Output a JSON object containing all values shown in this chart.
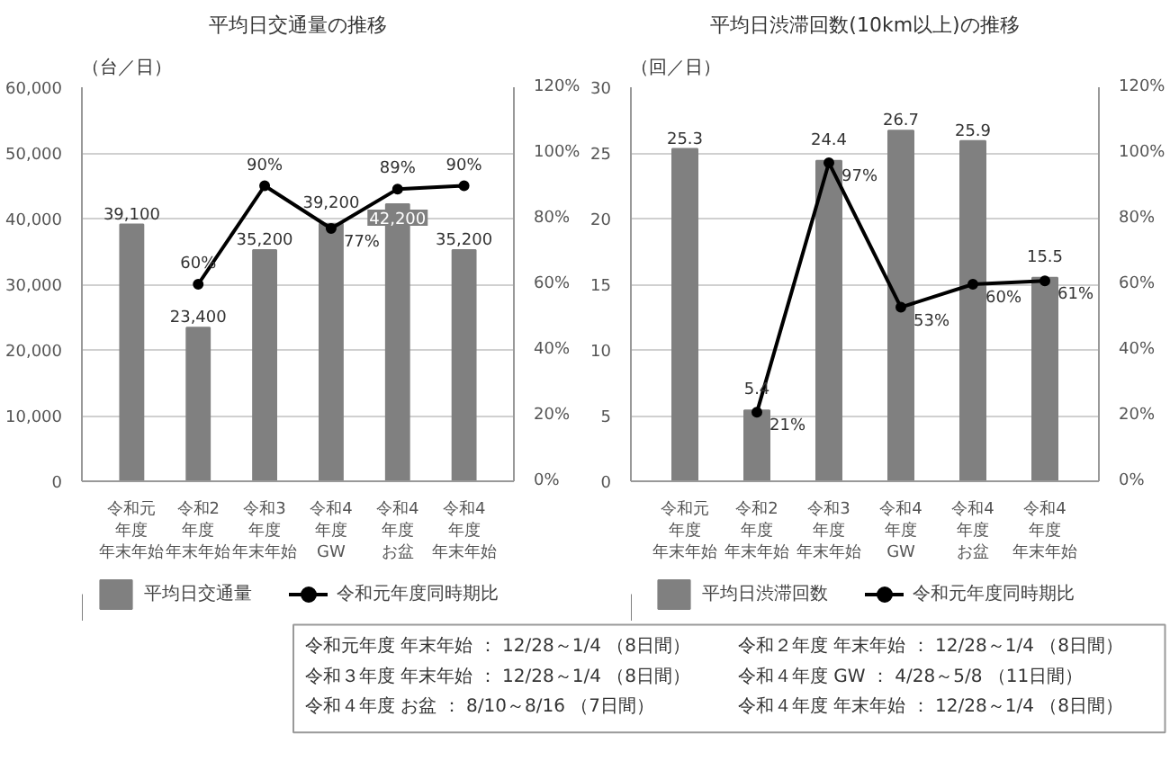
{
  "chart_data": [
    {
      "type": "bar",
      "title": "平均日交通量の推移",
      "ylabel": "（台／日）",
      "categories": [
        "令和元年度年末年始",
        "令和2年度年末年始",
        "令和3年度年末年始",
        "令和4年度GW",
        "令和4年度お盆",
        "令和4年度年末年始"
      ],
      "series": [
        {
          "name": "平均日交通量",
          "type": "bar",
          "color": "#808080",
          "values": [
            39100,
            23400,
            35200,
            39200,
            42200,
            35200
          ],
          "value_labels": [
            "39,100",
            "23,400",
            "35,200",
            "39,200",
            "42,200",
            "35,200"
          ]
        },
        {
          "name": "令和元年度同時期比",
          "type": "line",
          "axis": "y2",
          "color": "#000000",
          "marker": "circle",
          "values": [
            null,
            60,
            90,
            77,
            89,
            90
          ],
          "value_labels": [
            null,
            "60%",
            "90%",
            "77%",
            "89%",
            "90%"
          ]
        }
      ],
      "ylim": [
        0,
        60000
      ],
      "yticks": [
        0,
        {
          "value": 10000,
          "label": "10,000"
        },
        {
          "value": 20000,
          "label": "20,000"
        },
        {
          "value": 30000,
          "label": "30,000"
        },
        {
          "value": 40000,
          "label": "40,000"
        },
        {
          "value": 50000,
          "label": "50,000"
        },
        {
          "value": 60000,
          "label": "60,000"
        }
      ],
      "y2lim": [
        0,
        120
      ],
      "y2ticks": [
        {
          "value": 0,
          "label": "0%"
        },
        {
          "value": 20,
          "label": "20%"
        },
        {
          "value": 40,
          "label": "40%"
        },
        {
          "value": 60,
          "label": "60%"
        },
        {
          "value": 80,
          "label": "80%"
        },
        {
          "value": 100,
          "label": "100%"
        },
        {
          "value": 120,
          "label": "120%"
        }
      ],
      "grid": "y",
      "legend": "bottom"
    },
    {
      "type": "bar",
      "title": "平均日渋滞回数(10km以上)の推移",
      "ylabel": "（回／日）",
      "categories": [
        "令和元年度年末年始",
        "令和2年度年末年始",
        "令和3年度年末年始",
        "令和4年度GW",
        "令和4年度お盆",
        "令和4年度年末年始"
      ],
      "series": [
        {
          "name": "平均日渋滞回数",
          "type": "bar",
          "color": "#808080",
          "values": [
            25.3,
            5.4,
            24.4,
            26.7,
            25.9,
            15.5
          ],
          "value_labels": [
            "25.3",
            "5.4",
            "24.4",
            "26.7",
            "25.9",
            "15.5"
          ]
        },
        {
          "name": "令和元年度同時期比",
          "type": "line",
          "axis": "y2",
          "color": "#000000",
          "marker": "circle",
          "values": [
            null,
            21,
            97,
            53,
            60,
            61
          ],
          "value_labels": [
            null,
            "21%",
            "97%",
            "53%",
            "60%",
            "61%"
          ]
        }
      ],
      "ylim": [
        0,
        30
      ],
      "yticks": [
        0,
        5,
        10,
        15,
        20,
        25,
        30
      ],
      "y2lim": [
        0,
        120
      ],
      "y2ticks": [
        {
          "value": 0,
          "label": "0%"
        },
        {
          "value": 20,
          "label": "20%"
        },
        {
          "value": 40,
          "label": "40%"
        },
        {
          "value": 60,
          "label": "60%"
        },
        {
          "value": 80,
          "label": "80%"
        },
        {
          "value": 100,
          "label": "100%"
        },
        {
          "value": 120,
          "label": "120%"
        }
      ],
      "grid": "y",
      "legend": "bottom"
    },
    {
      "type": "other",
      "annotations": [
        "令和元年度 年末年始 ： 12/28～1/4 （8日間）",
        "令和３年度 年末年始 ： 12/28～1/4 （8日間）",
        "令和４年度 お盆 ： 8/10～8/16 （7日間）",
        "令和２年度 年末年始 ： 12/28～1/4 （8日間）",
        "令和４年度 GW ： 4/28～5/8 （11日間）",
        "令和４年度 年末年始 ： 12/28～1/4 （8日間）"
      ]
    }
  ]
}
